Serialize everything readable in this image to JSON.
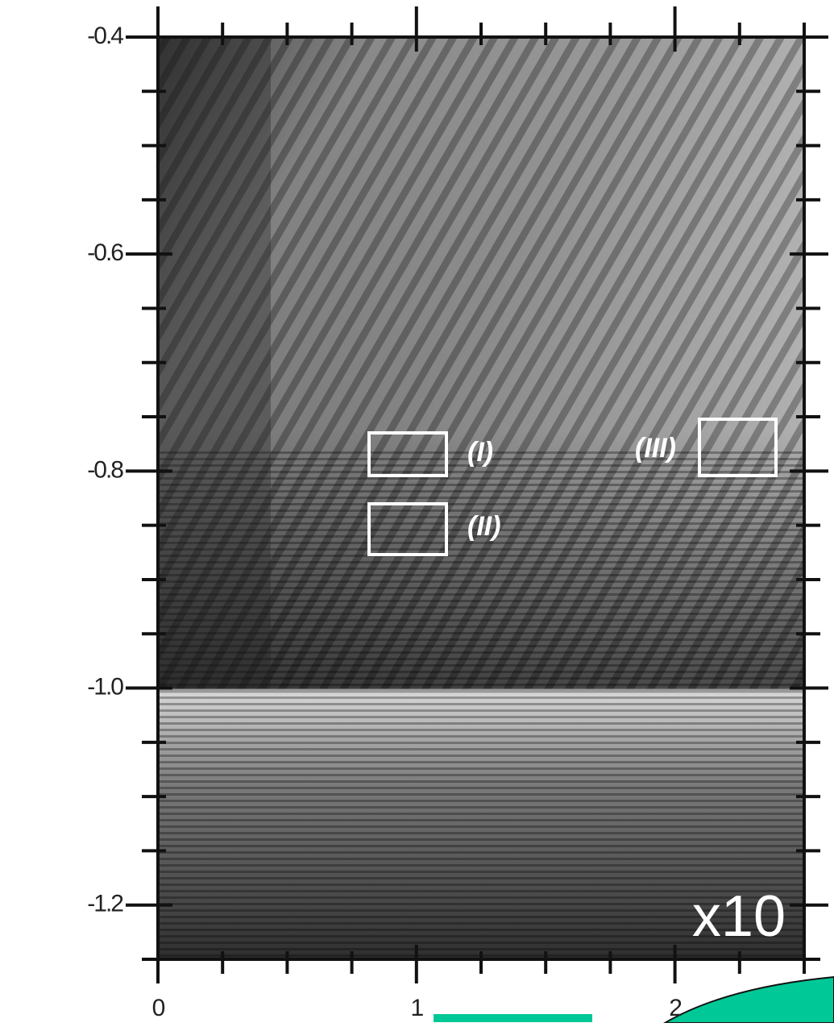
{
  "chart_data": {
    "type": "image",
    "xlim": [
      0,
      2.5
    ],
    "xticks": [
      0,
      1,
      2
    ],
    "xminorticks": [
      0.25,
      0.5,
      0.75,
      1.25,
      1.5,
      1.75,
      2.25,
      2.5
    ],
    "ylim": [
      -1.25,
      -0.4
    ],
    "yticks": [
      -0.4,
      -0.6,
      -0.8,
      {
        "value": -1,
        "label": "-1.0"
      },
      -1.2
    ],
    "yminorticks": [
      -0.45,
      -0.5,
      -0.55,
      -0.65,
      -0.7,
      -0.75,
      -0.85,
      -0.9,
      -0.95,
      -1.05,
      -1.1,
      -1.15,
      -1.25
    ],
    "annotations": [
      "(I)",
      "(II)",
      "(III)",
      "x10"
    ]
  }
}
